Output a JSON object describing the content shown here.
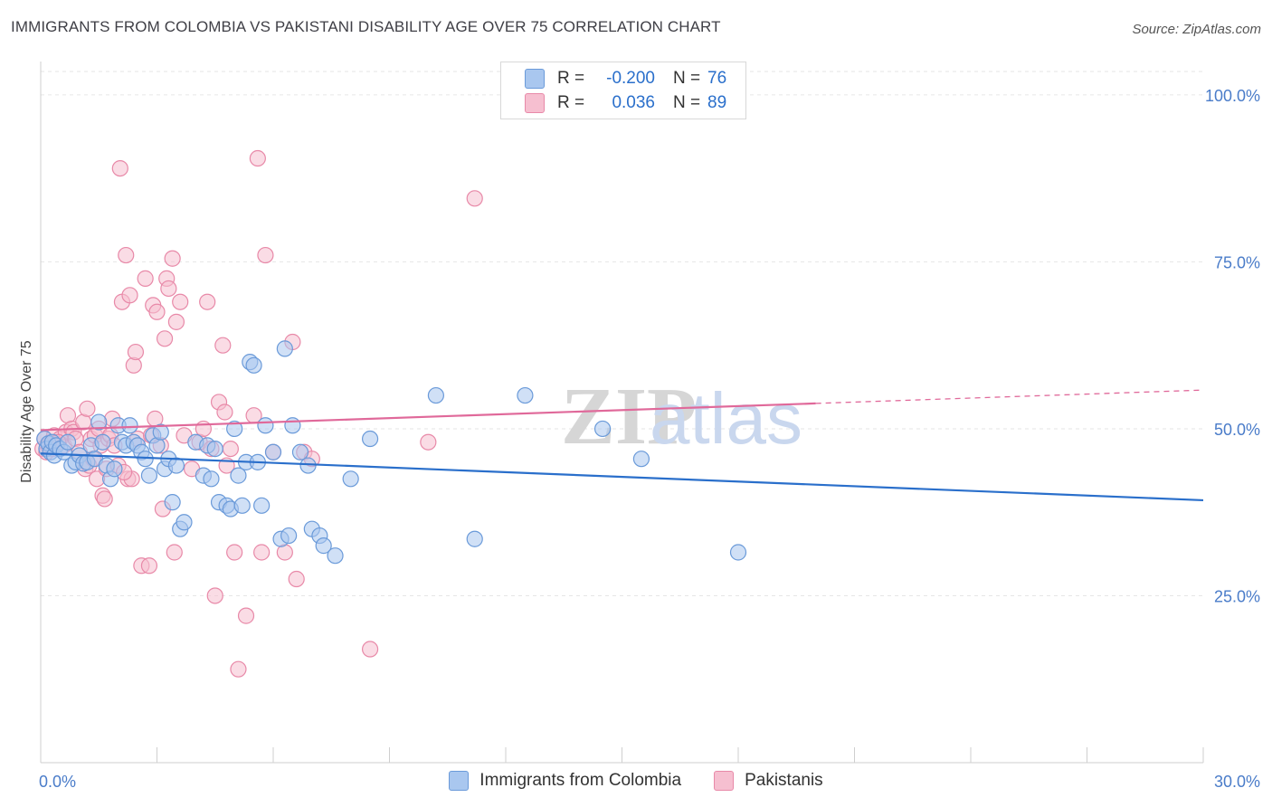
{
  "header": {
    "title": "IMMIGRANTS FROM COLOMBIA VS PAKISTANI DISABILITY AGE OVER 75 CORRELATION CHART",
    "source": "Source: ZipAtlas.com"
  },
  "watermark": {
    "zip": "ZIP",
    "atlas": "atlas"
  },
  "legend": {
    "rows": [
      {
        "r_label": "R =",
        "r_value": "-0.200",
        "n_label": "N =",
        "n_value": "76"
      },
      {
        "r_label": "R =",
        "r_value": "0.036",
        "n_label": "N =",
        "n_value": "89"
      }
    ]
  },
  "bottom_legend": {
    "series1": "Immigrants from Colombia",
    "series2": "Pakistanis"
  },
  "colors": {
    "blue_fill": "#a9c7ef",
    "blue_stroke": "#6a9ad9",
    "blue_line": "#2a6fcb",
    "pink_fill": "#f6bfd0",
    "pink_stroke": "#e889a8",
    "pink_line": "#e0699a",
    "tick_text": "#4a7cc9",
    "grid": "#e6e6e6"
  },
  "chart_data": {
    "type": "scatter",
    "title": "IMMIGRANTS FROM COLOMBIA VS PAKISTANI DISABILITY AGE OVER 75 CORRELATION CHART",
    "xlabel": "",
    "ylabel": "Disability Age Over 75",
    "xlim": [
      0,
      30
    ],
    "ylim": [
      0,
      105
    ],
    "x_tick_labels": [
      "0.0%",
      "30.0%"
    ],
    "y_ticks": [
      25,
      50,
      75,
      100
    ],
    "y_tick_labels": [
      "25.0%",
      "50.0%",
      "75.0%",
      "100.0%"
    ],
    "series": [
      {
        "name": "Immigrants from Colombia",
        "color": "blue",
        "trend": {
          "x0": 0,
          "y0": 46.3,
          "x1": 30,
          "y1": 39.3
        },
        "points": [
          [
            0.1,
            48.5
          ],
          [
            0.15,
            47.0
          ],
          [
            0.2,
            47.8
          ],
          [
            0.25,
            46.5
          ],
          [
            0.3,
            48.0
          ],
          [
            0.35,
            46.0
          ],
          [
            0.4,
            47.5
          ],
          [
            0.5,
            47.0
          ],
          [
            0.6,
            46.5
          ],
          [
            0.7,
            48.0
          ],
          [
            0.8,
            44.5
          ],
          [
            0.9,
            45.0
          ],
          [
            1.0,
            46.0
          ],
          [
            1.1,
            44.8
          ],
          [
            1.2,
            45.0
          ],
          [
            1.3,
            47.5
          ],
          [
            1.4,
            45.5
          ],
          [
            1.5,
            51.0
          ],
          [
            1.6,
            48.0
          ],
          [
            1.7,
            44.5
          ],
          [
            1.8,
            42.5
          ],
          [
            1.9,
            44.0
          ],
          [
            2.0,
            50.5
          ],
          [
            2.1,
            48.0
          ],
          [
            2.2,
            47.5
          ],
          [
            2.3,
            50.5
          ],
          [
            2.4,
            48.0
          ],
          [
            2.5,
            47.5
          ],
          [
            2.6,
            46.5
          ],
          [
            2.7,
            45.5
          ],
          [
            2.8,
            43.0
          ],
          [
            2.9,
            49.0
          ],
          [
            3.0,
            47.5
          ],
          [
            3.1,
            49.5
          ],
          [
            3.2,
            44.0
          ],
          [
            3.3,
            45.5
          ],
          [
            3.4,
            39.0
          ],
          [
            3.5,
            44.5
          ],
          [
            3.6,
            35.0
          ],
          [
            3.7,
            36.0
          ],
          [
            4.0,
            48.0
          ],
          [
            4.2,
            43.0
          ],
          [
            4.3,
            47.5
          ],
          [
            4.4,
            42.5
          ],
          [
            4.5,
            47.0
          ],
          [
            4.6,
            39.0
          ],
          [
            4.8,
            38.5
          ],
          [
            4.9,
            38.0
          ],
          [
            5.0,
            50.0
          ],
          [
            5.1,
            43.0
          ],
          [
            5.2,
            38.5
          ],
          [
            5.3,
            45.0
          ],
          [
            5.4,
            60.0
          ],
          [
            5.5,
            59.5
          ],
          [
            5.6,
            45.0
          ],
          [
            5.7,
            38.5
          ],
          [
            5.8,
            50.5
          ],
          [
            6.0,
            46.5
          ],
          [
            6.2,
            33.5
          ],
          [
            6.3,
            62.0
          ],
          [
            6.4,
            34.0
          ],
          [
            6.5,
            50.5
          ],
          [
            6.7,
            46.5
          ],
          [
            6.9,
            44.5
          ],
          [
            7.0,
            35.0
          ],
          [
            7.2,
            34.0
          ],
          [
            7.3,
            32.5
          ],
          [
            7.6,
            31.0
          ],
          [
            8.0,
            42.5
          ],
          [
            8.5,
            48.5
          ],
          [
            10.2,
            55.0
          ],
          [
            11.2,
            33.5
          ],
          [
            12.5,
            55.0
          ],
          [
            14.5,
            50.0
          ],
          [
            15.5,
            45.5
          ],
          [
            18.0,
            31.5
          ]
        ]
      },
      {
        "name": "Pakistanis",
        "color": "pink",
        "trend": {
          "x0": 0,
          "y0": 49.8,
          "x1": 20,
          "y1": 53.8,
          "dash_to_x": 30,
          "dash_to_y": 55.8
        },
        "points": [
          [
            0.05,
            47.0
          ],
          [
            0.1,
            48.5
          ],
          [
            0.15,
            46.5
          ],
          [
            0.2,
            47.5
          ],
          [
            0.25,
            48.0
          ],
          [
            0.3,
            47.0
          ],
          [
            0.35,
            49.0
          ],
          [
            0.4,
            47.5
          ],
          [
            0.5,
            48.5
          ],
          [
            0.6,
            47.5
          ],
          [
            0.65,
            49.5
          ],
          [
            0.7,
            52.0
          ],
          [
            0.8,
            50.0
          ],
          [
            0.85,
            49.5
          ],
          [
            0.9,
            48.5
          ],
          [
            1.0,
            46.5
          ],
          [
            1.1,
            51.0
          ],
          [
            1.15,
            44.0
          ],
          [
            1.2,
            53.0
          ],
          [
            1.25,
            44.5
          ],
          [
            1.3,
            48.5
          ],
          [
            1.35,
            45.5
          ],
          [
            1.4,
            49.0
          ],
          [
            1.45,
            42.5
          ],
          [
            1.5,
            50.0
          ],
          [
            1.55,
            47.5
          ],
          [
            1.6,
            40.0
          ],
          [
            1.65,
            39.5
          ],
          [
            1.7,
            44.0
          ],
          [
            1.75,
            48.5
          ],
          [
            1.8,
            49.0
          ],
          [
            1.85,
            51.5
          ],
          [
            1.9,
            47.5
          ],
          [
            2.0,
            44.5
          ],
          [
            2.05,
            89.0
          ],
          [
            2.1,
            69.0
          ],
          [
            2.2,
            76.0
          ],
          [
            2.25,
            42.5
          ],
          [
            2.3,
            70.0
          ],
          [
            2.35,
            42.5
          ],
          [
            2.4,
            59.5
          ],
          [
            2.45,
            61.5
          ],
          [
            2.5,
            48.5
          ],
          [
            2.6,
            29.5
          ],
          [
            2.7,
            72.5
          ],
          [
            2.8,
            29.5
          ],
          [
            2.85,
            49.0
          ],
          [
            2.9,
            68.5
          ],
          [
            2.95,
            51.5
          ],
          [
            3.0,
            67.5
          ],
          [
            3.1,
            47.5
          ],
          [
            3.15,
            38.0
          ],
          [
            3.2,
            63.5
          ],
          [
            3.25,
            72.5
          ],
          [
            3.3,
            71.0
          ],
          [
            3.4,
            75.5
          ],
          [
            3.45,
            31.5
          ],
          [
            3.5,
            66.0
          ],
          [
            3.6,
            69.0
          ],
          [
            3.7,
            49.0
          ],
          [
            3.9,
            44.0
          ],
          [
            4.1,
            48.0
          ],
          [
            4.2,
            50.0
          ],
          [
            4.3,
            69.0
          ],
          [
            4.4,
            47.0
          ],
          [
            4.5,
            25.0
          ],
          [
            4.6,
            54.0
          ],
          [
            4.7,
            62.5
          ],
          [
            4.75,
            52.5
          ],
          [
            4.8,
            44.5
          ],
          [
            5.0,
            31.5
          ],
          [
            5.1,
            14.0
          ],
          [
            5.3,
            22.0
          ],
          [
            5.5,
            52.0
          ],
          [
            5.6,
            90.5
          ],
          [
            5.7,
            31.5
          ],
          [
            5.8,
            76.0
          ],
          [
            6.0,
            46.5
          ],
          [
            6.3,
            31.5
          ],
          [
            6.5,
            63.0
          ],
          [
            6.6,
            27.5
          ],
          [
            6.8,
            46.5
          ],
          [
            7.0,
            45.5
          ],
          [
            8.5,
            17.0
          ],
          [
            10.0,
            48.0
          ],
          [
            11.2,
            84.5
          ],
          [
            4.9,
            47.0
          ],
          [
            2.15,
            43.5
          ],
          [
            0.45,
            48.0
          ]
        ]
      }
    ]
  }
}
